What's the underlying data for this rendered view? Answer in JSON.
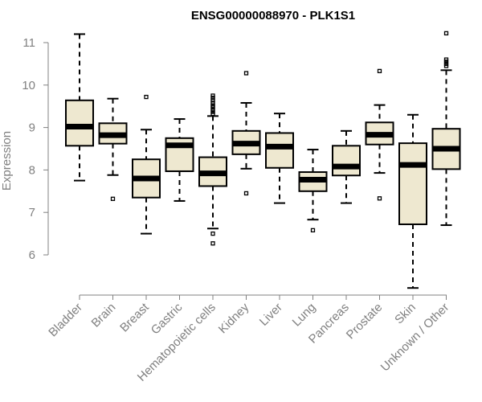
{
  "chart_data": {
    "type": "boxplot",
    "title": "ENSG00000088970 - PLK1S1",
    "xlabel": "",
    "ylabel": "Expression",
    "ylim": [
      5.2,
      11.3
    ],
    "yticks": [
      6,
      7,
      8,
      9,
      10,
      11
    ],
    "box_color": "#EEE8D0",
    "line_color": "#000000",
    "axis_color": "#808080",
    "categories": [
      "Bladder",
      "Brain",
      "Breast",
      "Gastric",
      "Hematopoietic cells",
      "Kidney",
      "Liver",
      "Lung",
      "Pancreas",
      "Prostate",
      "Skin",
      "Unknown / Other"
    ],
    "boxes": [
      {
        "name": "Bladder",
        "whisker_low": 7.75,
        "q1": 8.57,
        "median": 9.02,
        "q3": 9.64,
        "whisker_high": 11.2,
        "outliers": []
      },
      {
        "name": "Brain",
        "whisker_low": 7.88,
        "q1": 8.62,
        "median": 8.82,
        "q3": 9.1,
        "whisker_high": 9.68,
        "outliers": [
          7.32
        ]
      },
      {
        "name": "Breast",
        "whisker_low": 6.5,
        "q1": 7.35,
        "median": 7.8,
        "q3": 8.25,
        "whisker_high": 8.95,
        "outliers": [
          9.72
        ]
      },
      {
        "name": "Gastric",
        "whisker_low": 7.27,
        "q1": 7.97,
        "median": 8.58,
        "q3": 8.75,
        "whisker_high": 9.2,
        "outliers": []
      },
      {
        "name": "Hematopoietic cells",
        "whisker_low": 6.62,
        "q1": 7.62,
        "median": 7.92,
        "q3": 8.3,
        "whisker_high": 9.27,
        "outliers": [
          9.32,
          9.37,
          9.42,
          9.48,
          9.52,
          9.58,
          9.64,
          9.7,
          9.75,
          6.5,
          6.27
        ]
      },
      {
        "name": "Kidney",
        "whisker_low": 8.03,
        "q1": 8.37,
        "median": 8.62,
        "q3": 8.92,
        "whisker_high": 9.58,
        "outliers": [
          10.28,
          7.45
        ]
      },
      {
        "name": "Liver",
        "whisker_low": 7.22,
        "q1": 8.05,
        "median": 8.55,
        "q3": 8.87,
        "whisker_high": 9.33,
        "outliers": []
      },
      {
        "name": "Lung",
        "whisker_low": 6.83,
        "q1": 7.5,
        "median": 7.77,
        "q3": 7.95,
        "whisker_high": 8.48,
        "outliers": [
          6.58
        ]
      },
      {
        "name": "Pancreas",
        "whisker_low": 7.22,
        "q1": 7.87,
        "median": 8.08,
        "q3": 8.57,
        "whisker_high": 8.92,
        "outliers": []
      },
      {
        "name": "Prostate",
        "whisker_low": 7.93,
        "q1": 8.6,
        "median": 8.83,
        "q3": 9.12,
        "whisker_high": 9.53,
        "outliers": [
          10.33,
          7.33
        ]
      },
      {
        "name": "Skin",
        "whisker_low": 5.22,
        "q1": 6.72,
        "median": 8.12,
        "q3": 8.63,
        "whisker_high": 9.3,
        "outliers": []
      },
      {
        "name": "Unknown / Other",
        "whisker_low": 6.7,
        "q1": 8.02,
        "median": 8.5,
        "q3": 8.97,
        "whisker_high": 10.35,
        "outliers": [
          10.45,
          10.5,
          10.55,
          10.6,
          11.22
        ]
      }
    ]
  }
}
